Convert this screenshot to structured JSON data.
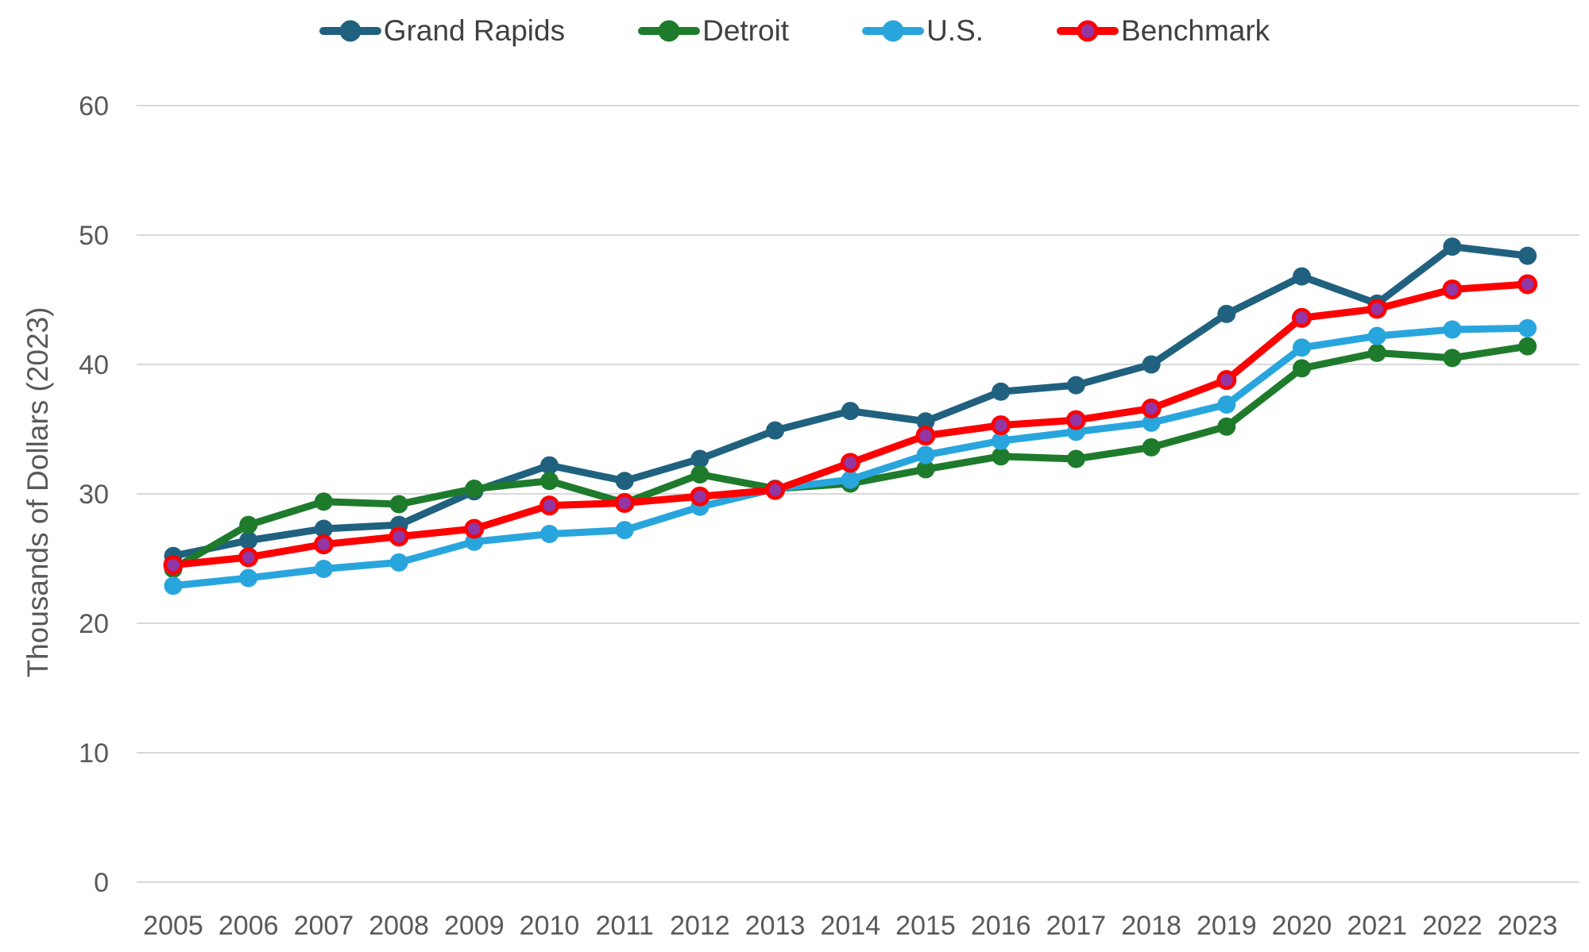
{
  "chart_data": {
    "type": "line",
    "title": "",
    "xlabel": "",
    "ylabel": "Thousands of Dollars (2023)",
    "ylim": [
      0,
      60
    ],
    "yticks": [
      0,
      10,
      20,
      30,
      40,
      50,
      60
    ],
    "grid": "horizontal",
    "grid_color": "#D9D9D9",
    "tick_label_color": "#595959",
    "legend_position": "top",
    "x": [
      2005,
      2006,
      2007,
      2008,
      2009,
      2010,
      2011,
      2012,
      2013,
      2014,
      2015,
      2016,
      2017,
      2018,
      2019,
      2020,
      2021,
      2022,
      2023
    ],
    "series": [
      {
        "name": "Grand Rapids",
        "color": "#20617F",
        "marker": "circle",
        "values": [
          25.2,
          26.4,
          27.3,
          27.6,
          30.2,
          32.2,
          31.0,
          32.7,
          34.9,
          36.4,
          35.6,
          37.9,
          38.4,
          40.0,
          43.9,
          46.8,
          44.7,
          49.1,
          48.4
        ]
      },
      {
        "name": "Detroit",
        "color": "#1E7B2C",
        "marker": "circle",
        "values": [
          24.2,
          27.6,
          29.4,
          29.2,
          30.4,
          31.0,
          29.3,
          31.5,
          30.4,
          30.8,
          31.9,
          32.9,
          32.7,
          33.6,
          35.2,
          39.7,
          40.9,
          40.5,
          41.4
        ]
      },
      {
        "name": "U.S.",
        "color": "#29A5DE",
        "marker": "circle",
        "values": [
          22.9,
          23.5,
          24.2,
          24.7,
          26.3,
          26.9,
          27.2,
          29.0,
          30.4,
          31.1,
          33.0,
          34.1,
          34.8,
          35.5,
          36.9,
          41.3,
          42.2,
          42.7,
          42.8
        ]
      },
      {
        "name": "Benchmark",
        "color": "#FE0000",
        "marker": "circle",
        "marker_fill": "#9237A4",
        "values": [
          24.5,
          25.1,
          26.1,
          26.7,
          27.3,
          29.1,
          29.3,
          29.8,
          30.3,
          32.4,
          34.5,
          35.3,
          35.7,
          36.6,
          38.8,
          43.6,
          44.3,
          45.8,
          46.2
        ]
      }
    ]
  }
}
